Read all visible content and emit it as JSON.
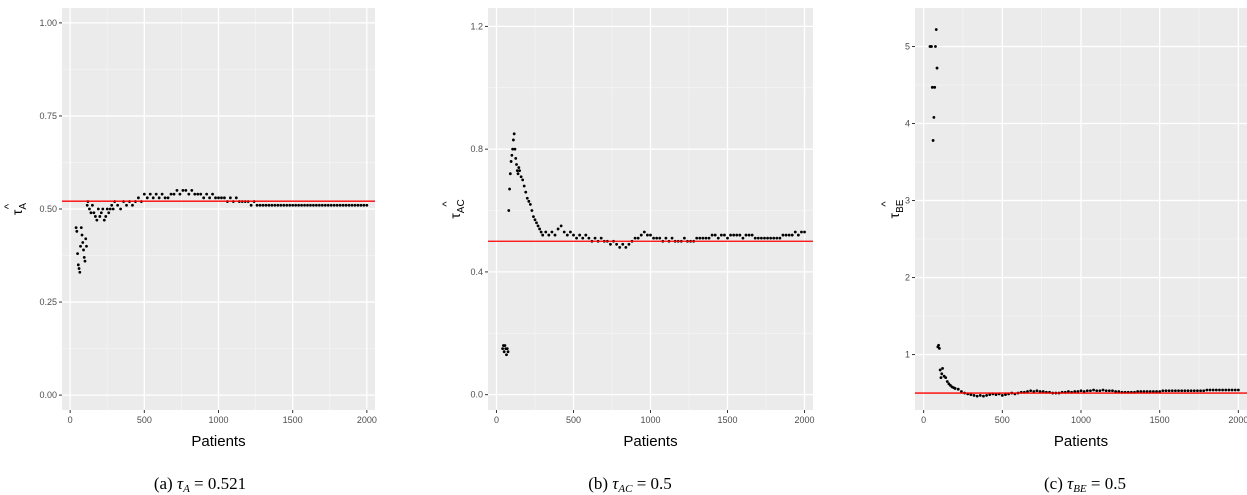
{
  "chart_data": [
    {
      "type": "scatter",
      "xlabel": "Patients",
      "ylabel_symbol": "τ",
      "ylabel_subscript": "A",
      "ylabel_hat": "^",
      "caption_prefix": "(a)",
      "caption_symbol": "τ",
      "caption_subscript": "A",
      "caption_equals": "=",
      "caption_value": "0.521",
      "xlim": [
        -55,
        2055
      ],
      "ylim": [
        -0.04,
        1.04
      ],
      "xticks": [
        0,
        500,
        1000,
        1500,
        2000
      ],
      "xtick_labels": [
        "0",
        "500",
        "1000",
        "1500",
        "2000"
      ],
      "yticks": [
        0,
        0.25,
        0.5,
        0.75,
        1.0
      ],
      "ytick_labels": [
        "0.00",
        "0.25",
        "0.50",
        "0.75",
        "1.00"
      ],
      "reference_line": 0.521,
      "reference_color": "#ff0000",
      "point_color": "#000000",
      "series": [
        {
          "x": [
            40,
            45,
            50,
            55,
            60,
            65,
            70,
            75,
            80,
            85,
            90,
            95,
            100,
            105,
            110,
            115,
            120,
            130,
            140,
            150,
            160,
            170,
            180,
            190,
            200,
            210,
            220,
            230,
            240,
            250,
            260,
            270,
            280,
            290,
            300,
            320,
            340,
            360,
            380,
            400,
            420,
            440,
            460,
            480,
            500,
            520,
            540,
            560,
            580,
            600,
            620,
            640,
            660,
            680,
            700,
            720,
            740,
            760,
            780,
            800,
            820,
            840,
            860,
            880,
            900,
            920,
            940,
            960,
            980,
            1000,
            1020,
            1040,
            1060,
            1080,
            1100,
            1120,
            1140,
            1160,
            1180,
            1200,
            1220,
            1240,
            1260,
            1280,
            1300,
            1320,
            1340,
            1360,
            1380,
            1400,
            1420,
            1440,
            1460,
            1480,
            1500,
            1520,
            1540,
            1560,
            1580,
            1600,
            1620,
            1640,
            1660,
            1680,
            1700,
            1720,
            1740,
            1760,
            1780,
            1800,
            1820,
            1840,
            1860,
            1880,
            1900,
            1920,
            1940,
            1960,
            1980,
            2000
          ],
          "y": [
            0.45,
            0.44,
            0.38,
            0.35,
            0.34,
            0.33,
            0.4,
            0.45,
            0.43,
            0.41,
            0.39,
            0.37,
            0.36,
            0.42,
            0.4,
            0.51,
            0.52,
            0.5,
            0.49,
            0.51,
            0.49,
            0.48,
            0.47,
            0.5,
            0.48,
            0.49,
            0.5,
            0.47,
            0.48,
            0.5,
            0.49,
            0.5,
            0.51,
            0.5,
            0.52,
            0.51,
            0.5,
            0.52,
            0.51,
            0.52,
            0.51,
            0.52,
            0.53,
            0.52,
            0.54,
            0.53,
            0.54,
            0.53,
            0.54,
            0.53,
            0.54,
            0.53,
            0.53,
            0.54,
            0.54,
            0.55,
            0.54,
            0.55,
            0.55,
            0.54,
            0.55,
            0.54,
            0.54,
            0.54,
            0.53,
            0.54,
            0.53,
            0.54,
            0.53,
            0.53,
            0.53,
            0.53,
            0.52,
            0.53,
            0.52,
            0.53,
            0.52,
            0.52,
            0.52,
            0.52,
            0.51,
            0.52,
            0.51,
            0.51,
            0.51,
            0.51,
            0.51,
            0.51,
            0.51,
            0.51,
            0.51,
            0.51,
            0.51,
            0.51,
            0.51,
            0.51,
            0.51,
            0.51,
            0.51,
            0.51,
            0.51,
            0.51,
            0.51,
            0.51,
            0.51,
            0.51,
            0.51,
            0.51,
            0.51,
            0.51,
            0.51,
            0.51,
            0.51,
            0.51,
            0.51,
            0.51,
            0.51,
            0.51,
            0.51,
            0.51
          ]
        }
      ]
    },
    {
      "type": "scatter",
      "xlabel": "Patients",
      "ylabel_symbol": "τ",
      "ylabel_subscript": "AC",
      "ylabel_hat": "^",
      "caption_prefix": "(b)",
      "caption_symbol": "τ",
      "caption_subscript": "AC",
      "caption_equals": "=",
      "caption_value": "0.5",
      "xlim": [
        -55,
        2055
      ],
      "ylim": [
        -0.05,
        1.26
      ],
      "xticks": [
        0,
        500,
        1000,
        1500,
        2000
      ],
      "xtick_labels": [
        "0",
        "500",
        "1000",
        "1500",
        "2000"
      ],
      "yticks": [
        0,
        0.4,
        0.8,
        1.2
      ],
      "ytick_labels": [
        "0.0",
        "0.4",
        "0.8",
        "1.2"
      ],
      "reference_line": 0.5,
      "reference_color": "#ff0000",
      "point_color": "#000000",
      "series": [
        {
          "x": [
            40,
            45,
            50,
            55,
            60,
            65,
            70,
            75,
            80,
            85,
            90,
            95,
            100,
            105,
            110,
            115,
            120,
            125,
            130,
            135,
            140,
            145,
            150,
            160,
            170,
            180,
            190,
            200,
            210,
            220,
            230,
            240,
            250,
            260,
            270,
            280,
            290,
            300,
            320,
            340,
            360,
            380,
            400,
            420,
            440,
            460,
            480,
            500,
            520,
            540,
            560,
            580,
            600,
            620,
            640,
            660,
            680,
            700,
            720,
            740,
            760,
            780,
            800,
            820,
            840,
            860,
            880,
            900,
            920,
            940,
            960,
            980,
            1000,
            1020,
            1040,
            1060,
            1080,
            1100,
            1120,
            1140,
            1160,
            1180,
            1200,
            1220,
            1240,
            1260,
            1280,
            1300,
            1320,
            1340,
            1360,
            1380,
            1400,
            1420,
            1440,
            1460,
            1480,
            1500,
            1520,
            1540,
            1560,
            1580,
            1600,
            1620,
            1640,
            1660,
            1680,
            1700,
            1720,
            1740,
            1760,
            1780,
            1800,
            1820,
            1840,
            1860,
            1880,
            1900,
            1920,
            1940,
            1960,
            1980,
            2000
          ],
          "y": [
            0.15,
            0.16,
            0.14,
            0.16,
            0.15,
            0.13,
            0.15,
            0.14,
            0.6,
            0.67,
            0.72,
            0.76,
            0.78,
            0.8,
            0.83,
            0.85,
            0.8,
            0.77,
            0.75,
            0.73,
            0.72,
            0.74,
            0.73,
            0.71,
            0.7,
            0.68,
            0.66,
            0.64,
            0.63,
            0.62,
            0.6,
            0.58,
            0.57,
            0.56,
            0.55,
            0.54,
            0.53,
            0.52,
            0.53,
            0.52,
            0.53,
            0.52,
            0.54,
            0.55,
            0.53,
            0.52,
            0.53,
            0.52,
            0.51,
            0.52,
            0.51,
            0.52,
            0.51,
            0.5,
            0.51,
            0.5,
            0.51,
            0.5,
            0.5,
            0.49,
            0.5,
            0.49,
            0.48,
            0.49,
            0.48,
            0.49,
            0.5,
            0.51,
            0.51,
            0.52,
            0.53,
            0.52,
            0.52,
            0.51,
            0.51,
            0.51,
            0.5,
            0.51,
            0.5,
            0.51,
            0.5,
            0.5,
            0.5,
            0.51,
            0.5,
            0.5,
            0.5,
            0.51,
            0.51,
            0.51,
            0.51,
            0.51,
            0.52,
            0.52,
            0.51,
            0.52,
            0.52,
            0.51,
            0.52,
            0.52,
            0.52,
            0.52,
            0.51,
            0.52,
            0.52,
            0.52,
            0.51,
            0.51,
            0.51,
            0.51,
            0.51,
            0.51,
            0.51,
            0.51,
            0.51,
            0.52,
            0.52,
            0.52,
            0.52,
            0.53,
            0.52,
            0.53,
            0.53
          ]
        }
      ]
    },
    {
      "type": "scatter",
      "xlabel": "Patients",
      "ylabel_symbol": "τ",
      "ylabel_subscript": "BE",
      "ylabel_hat": "^",
      "caption_prefix": "(c)",
      "caption_symbol": "τ",
      "caption_subscript": "BE",
      "caption_equals": "=",
      "caption_value": "0.5",
      "xlim": [
        -55,
        2055
      ],
      "ylim": [
        0.28,
        5.5
      ],
      "xticks": [
        0,
        500,
        1000,
        1500,
        2000
      ],
      "xtick_labels": [
        "0",
        "500",
        "1000",
        "1500",
        "2000"
      ],
      "yticks": [
        1,
        2,
        3,
        4,
        5
      ],
      "ytick_labels": [
        "1",
        "2",
        "3",
        "4",
        "5"
      ],
      "reference_line": 0.5,
      "reference_color": "#ff0000",
      "point_color": "#000000",
      "series": [
        {
          "x": [
            40,
            45,
            50,
            55,
            60,
            65,
            70,
            75,
            80,
            85,
            90,
            95,
            100,
            105,
            110,
            115,
            120,
            130,
            140,
            150,
            160,
            170,
            180,
            190,
            200,
            220,
            240,
            260,
            280,
            300,
            320,
            340,
            360,
            380,
            400,
            420,
            440,
            460,
            480,
            500,
            520,
            540,
            560,
            580,
            600,
            620,
            640,
            660,
            680,
            700,
            720,
            740,
            760,
            780,
            800,
            820,
            840,
            860,
            880,
            900,
            920,
            940,
            960,
            980,
            1000,
            1020,
            1040,
            1060,
            1080,
            1100,
            1120,
            1140,
            1160,
            1180,
            1200,
            1220,
            1240,
            1260,
            1280,
            1300,
            1320,
            1340,
            1360,
            1380,
            1400,
            1420,
            1440,
            1460,
            1480,
            1500,
            1520,
            1540,
            1560,
            1580,
            1600,
            1620,
            1640,
            1660,
            1680,
            1700,
            1720,
            1740,
            1760,
            1780,
            1800,
            1820,
            1840,
            1860,
            1880,
            1900,
            1920,
            1940,
            1960,
            1980,
            2000
          ],
          "y": [
            5.0,
            5.0,
            5.0,
            4.47,
            3.78,
            4.08,
            4.47,
            5.0,
            5.22,
            4.72,
            1.1,
            1.12,
            1.08,
            0.8,
            0.7,
            0.75,
            0.82,
            0.72,
            0.7,
            0.65,
            0.62,
            0.6,
            0.58,
            0.57,
            0.56,
            0.55,
            0.52,
            0.5,
            0.49,
            0.48,
            0.47,
            0.46,
            0.47,
            0.46,
            0.47,
            0.48,
            0.49,
            0.48,
            0.49,
            0.47,
            0.48,
            0.49,
            0.5,
            0.49,
            0.5,
            0.51,
            0.51,
            0.52,
            0.53,
            0.52,
            0.53,
            0.52,
            0.52,
            0.51,
            0.51,
            0.5,
            0.5,
            0.5,
            0.51,
            0.51,
            0.52,
            0.51,
            0.52,
            0.52,
            0.53,
            0.52,
            0.53,
            0.53,
            0.54,
            0.53,
            0.53,
            0.54,
            0.53,
            0.53,
            0.53,
            0.52,
            0.52,
            0.51,
            0.51,
            0.51,
            0.51,
            0.51,
            0.52,
            0.52,
            0.52,
            0.52,
            0.52,
            0.52,
            0.52,
            0.52,
            0.53,
            0.53,
            0.53,
            0.53,
            0.53,
            0.53,
            0.53,
            0.53,
            0.53,
            0.53,
            0.53,
            0.53,
            0.53,
            0.53,
            0.54,
            0.54,
            0.54,
            0.54,
            0.54,
            0.54,
            0.54,
            0.54,
            0.54,
            0.54,
            0.54
          ]
        }
      ]
    }
  ]
}
